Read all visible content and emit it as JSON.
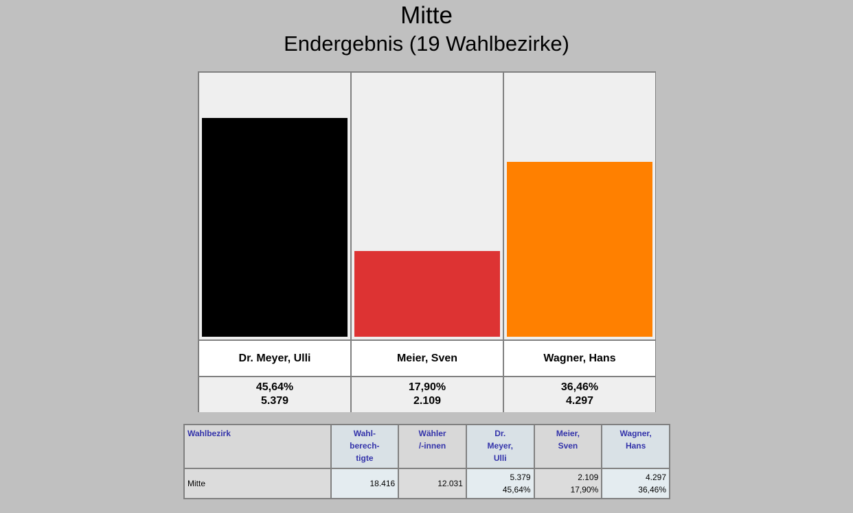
{
  "header": {
    "title": "Mitte",
    "subtitle": "Endergebnis (19 Wahlbezirke)"
  },
  "chart_data": {
    "type": "bar",
    "title": "Mitte",
    "subtitle": "Endergebnis (19 Wahlbezirke)",
    "categories": [
      "Dr. Meyer, Ulli",
      "Meier, Sven",
      "Wagner, Hans"
    ],
    "values": [
      45.64,
      17.9,
      36.46
    ],
    "value_labels": [
      "45,64%",
      "17,90%",
      "36,46%"
    ],
    "votes": [
      "5.379",
      "2.109",
      "4.297"
    ],
    "colors": [
      "#000000",
      "#dd3333",
      "#ff8000"
    ],
    "ylim": [
      0,
      55
    ],
    "grid": false,
    "legend": "none"
  },
  "table": {
    "headers": {
      "district": "Wahlbezirk",
      "eligible": [
        "Wahl-",
        "berech-",
        "tigte"
      ],
      "voters": [
        "Wähler",
        "/-innen"
      ],
      "cand1": [
        "Dr.",
        "Meyer,",
        "Ulli"
      ],
      "cand2": [
        "Meier,",
        "Sven"
      ],
      "cand3": [
        "Wagner,",
        "Hans"
      ]
    },
    "rows": [
      {
        "district": "Mitte",
        "eligible": "18.416",
        "voters": "12.031",
        "cand1_votes": "5.379",
        "cand1_pct": "45,64%",
        "cand2_votes": "2.109",
        "cand2_pct": "17,90%",
        "cand3_votes": "4.297",
        "cand3_pct": "36,46%"
      }
    ]
  }
}
